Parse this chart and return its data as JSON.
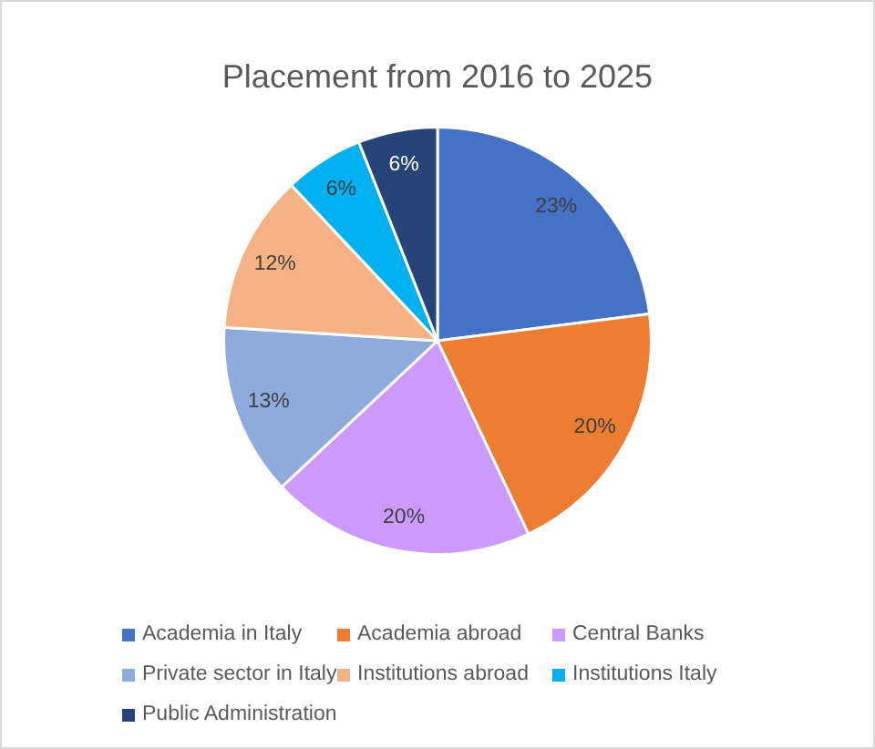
{
  "chart_data": {
    "type": "pie",
    "title": "Placement from 2016 to 2025",
    "categories": [
      "Academia in Italy",
      "Academia abroad",
      "Central Banks",
      "Private sector in Italy",
      "Institutions abroad",
      "Institutions Italy",
      "Public Administration"
    ],
    "values": [
      23,
      20,
      20,
      13,
      12,
      6,
      6
    ],
    "colors": [
      "#4472c4",
      "#ed7d31",
      "#cc99ff",
      "#8faadc",
      "#f4b183",
      "#00b0f0",
      "#264478"
    ],
    "value_labels": [
      "23%",
      "20%",
      "20%",
      "13%",
      "12%",
      "6%",
      "6%"
    ],
    "legend": "bottom"
  }
}
